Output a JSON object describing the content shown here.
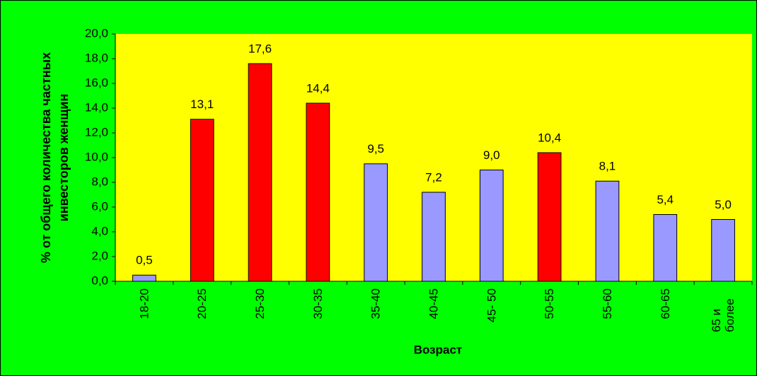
{
  "chart_data": {
    "type": "bar",
    "ylabel": "% от общего количества частных инвесторов женщин",
    "xlabel": "Возраст",
    "categories": [
      "18-20",
      "20-25",
      "25-30",
      "30-35",
      "35-40",
      "40-45",
      "45- 50",
      "50-55",
      "55-60",
      "60-65",
      "65 и более"
    ],
    "values": [
      0.5,
      13.1,
      17.6,
      14.4,
      9.5,
      7.2,
      9.0,
      10.4,
      8.1,
      5.4,
      5.0
    ],
    "value_labels": [
      "0,5",
      "13,1",
      "17,6",
      "14,4",
      "9,5",
      "7,2",
      "9,0",
      "10,4",
      "8,1",
      "5,4",
      "5,0"
    ],
    "colors": [
      "#9999ff",
      "#ff0000",
      "#ff0000",
      "#ff0000",
      "#9999ff",
      "#9999ff",
      "#9999ff",
      "#ff0000",
      "#9999ff",
      "#9999ff",
      "#9999ff"
    ],
    "ylim": [
      0,
      20
    ],
    "yticks": [
      {
        "value": 0,
        "label": "0,0"
      },
      {
        "value": 2,
        "label": "2,0"
      },
      {
        "value": 4,
        "label": "4,0"
      },
      {
        "value": 6,
        "label": "6,0"
      },
      {
        "value": 8,
        "label": "8,0"
      },
      {
        "value": 10,
        "label": "10,0"
      },
      {
        "value": 12,
        "label": "12,0"
      },
      {
        "value": 14,
        "label": "14,0"
      },
      {
        "value": 16,
        "label": "16,0"
      },
      {
        "value": 18,
        "label": "18,0"
      },
      {
        "value": 20,
        "label": "20,0"
      }
    ],
    "grid": false
  }
}
